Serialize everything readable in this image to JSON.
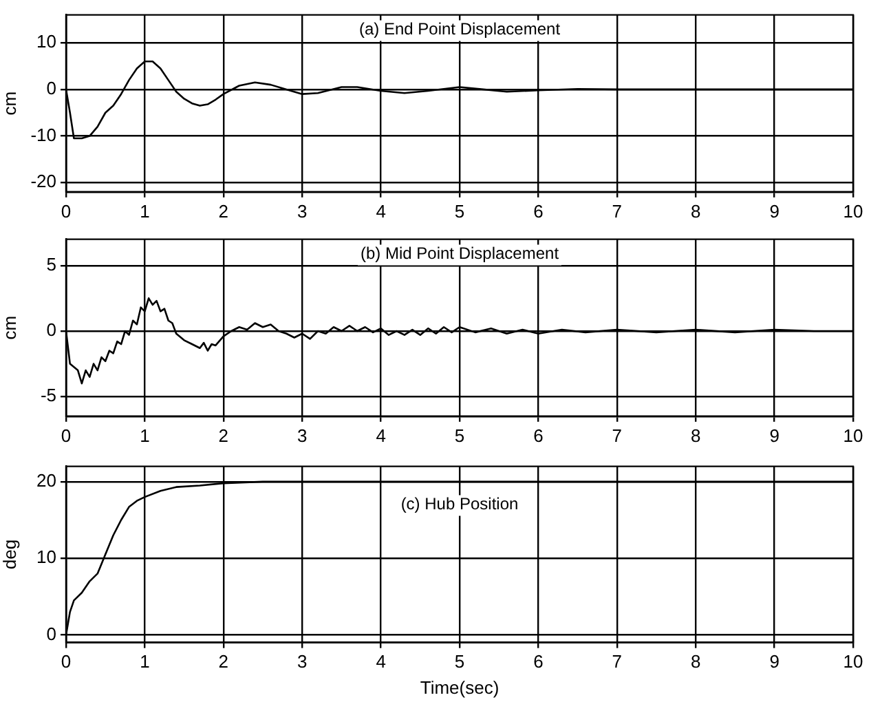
{
  "chart_data": [
    {
      "type": "line",
      "title": "(a) End Point Displacement",
      "ylabel": "cm",
      "color": "#000000",
      "grid": true,
      "marker": "none",
      "line_style": "solid",
      "xlim": [
        0,
        10
      ],
      "xticks": [
        0,
        1,
        2,
        3,
        4,
        5,
        6,
        7,
        8,
        9,
        10
      ],
      "ylim": [
        -22,
        16
      ],
      "yticks": [
        -20,
        -10,
        0,
        10
      ],
      "x": [
        0,
        0.05,
        0.1,
        0.2,
        0.3,
        0.4,
        0.5,
        0.6,
        0.7,
        0.8,
        0.9,
        1.0,
        1.1,
        1.2,
        1.3,
        1.4,
        1.5,
        1.6,
        1.7,
        1.8,
        1.9,
        2.0,
        2.2,
        2.4,
        2.6,
        2.8,
        3.0,
        3.2,
        3.5,
        3.7,
        4.0,
        4.3,
        4.6,
        5.0,
        5.3,
        5.6,
        6.0,
        6.5,
        7,
        8,
        9,
        10
      ],
      "values": [
        0,
        -5,
        -10.5,
        -10.5,
        -10,
        -8,
        -5,
        -3.5,
        -1,
        2,
        4.5,
        6,
        6,
        4.5,
        2,
        -0.5,
        -2,
        -3,
        -3.5,
        -3.2,
        -2.2,
        -1,
        0.8,
        1.5,
        1,
        0,
        -1,
        -0.8,
        0.5,
        0.5,
        -0.3,
        -0.8,
        -0.3,
        0.5,
        0,
        -0.5,
        -0.2,
        0.1,
        0,
        0,
        0,
        0
      ]
    },
    {
      "type": "line",
      "title": "(b) Mid Point Displacement",
      "ylabel": "cm",
      "color": "#000000",
      "grid": true,
      "marker": "none",
      "line_style": "solid",
      "xlim": [
        0,
        10
      ],
      "xticks": [
        0,
        1,
        2,
        3,
        4,
        5,
        6,
        7,
        8,
        9,
        10
      ],
      "ylim": [
        -6.5,
        7
      ],
      "yticks": [
        -5,
        0,
        5
      ],
      "x": [
        0,
        0.05,
        0.15,
        0.2,
        0.25,
        0.3,
        0.35,
        0.4,
        0.45,
        0.5,
        0.55,
        0.6,
        0.65,
        0.7,
        0.75,
        0.8,
        0.85,
        0.9,
        0.95,
        1.0,
        1.05,
        1.1,
        1.15,
        1.2,
        1.25,
        1.3,
        1.35,
        1.4,
        1.5,
        1.6,
        1.7,
        1.75,
        1.8,
        1.85,
        1.9,
        2.0,
        2.1,
        2.2,
        2.3,
        2.4,
        2.5,
        2.6,
        2.7,
        2.8,
        2.9,
        3.0,
        3.1,
        3.2,
        3.3,
        3.4,
        3.5,
        3.6,
        3.7,
        3.8,
        3.9,
        4.0,
        4.1,
        4.2,
        4.3,
        4.4,
        4.5,
        4.6,
        4.7,
        4.8,
        4.9,
        5.0,
        5.2,
        5.4,
        5.6,
        5.8,
        6.0,
        6.3,
        6.6,
        7,
        7.5,
        8,
        8.5,
        9,
        9.5,
        10
      ],
      "values": [
        0,
        -2.5,
        -3,
        -4,
        -3,
        -3.5,
        -2.5,
        -3,
        -2,
        -2.3,
        -1.5,
        -1.7,
        -0.8,
        -1,
        0,
        -0.3,
        0.8,
        0.5,
        1.8,
        1.5,
        2.5,
        2,
        2.3,
        1.5,
        1.7,
        0.8,
        0.6,
        -0.2,
        -0.7,
        -1,
        -1.3,
        -0.9,
        -1.5,
        -1,
        -1.1,
        -0.4,
        0,
        0.3,
        0.1,
        0.6,
        0.3,
        0.5,
        0,
        -0.2,
        -0.5,
        -0.2,
        -0.6,
        0,
        -0.2,
        0.3,
        0,
        0.4,
        0,
        0.3,
        -0.1,
        0.2,
        -0.3,
        0,
        -0.3,
        0.1,
        -0.3,
        0.2,
        -0.2,
        0.3,
        -0.1,
        0.3,
        -0.1,
        0.2,
        -0.2,
        0.1,
        -0.2,
        0.1,
        -0.1,
        0.1,
        -0.1,
        0.1,
        -0.1,
        0.1,
        0,
        0
      ]
    },
    {
      "type": "line",
      "title": "(c) Hub Position",
      "ylabel": "deg",
      "xlabel": "Time(sec)",
      "color": "#000000",
      "grid": true,
      "marker": "none",
      "line_style": "solid",
      "xlim": [
        0,
        10
      ],
      "xticks": [
        0,
        1,
        2,
        3,
        4,
        5,
        6,
        7,
        8,
        9,
        10
      ],
      "ylim": [
        -1,
        22
      ],
      "yticks": [
        0,
        10,
        20
      ],
      "x": [
        0,
        0.05,
        0.1,
        0.2,
        0.3,
        0.4,
        0.5,
        0.6,
        0.7,
        0.8,
        0.9,
        1.0,
        1.2,
        1.4,
        1.7,
        2.0,
        2.5,
        3,
        10
      ],
      "values": [
        0,
        3,
        4.5,
        5.5,
        7,
        8,
        10.5,
        13,
        15,
        16.7,
        17.5,
        18,
        18.8,
        19.3,
        19.5,
        19.8,
        20,
        20,
        20
      ]
    }
  ]
}
